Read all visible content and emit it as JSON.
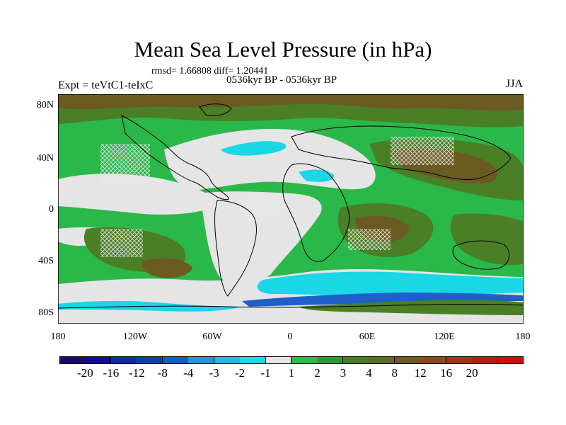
{
  "title": "Mean Sea Level Pressure (in hPa)",
  "stats": "rmsd= 1.66808 diff= 1.20441",
  "period": "0536kyr BP - 0536kyr BP",
  "experiment": "Expt = teVtC1-teIxC",
  "season": "JJA",
  "lat_labels": [
    "80N",
    "40N",
    "0",
    "40S",
    "80S"
  ],
  "lon_labels": [
    "180",
    "120W",
    "60W",
    "0",
    "60E",
    "120E",
    "180"
  ],
  "colors": {
    "map_light": "#e5e5e5",
    "map_green": "#2bb84a",
    "map_olive": "#4a7f26",
    "map_brown": "#6b5b22",
    "map_cyan": "#1ad6e6",
    "map_blue": "#1e5fc8"
  },
  "legend": {
    "colors": [
      "#1a0a6b",
      "#120a9a",
      "#0d2aa8",
      "#0c3fb2",
      "#1060c8",
      "#1a9ad8",
      "#19c0e3",
      "#1adbe9",
      "#e6e6e6",
      "#22c24a",
      "#2e9a36",
      "#4b7f26",
      "#5e6b22",
      "#6b5a22",
      "#8a4a1c",
      "#a83414",
      "#c01a0c",
      "#d80a0a"
    ],
    "labels": [
      "-20",
      "-16",
      "-12",
      "-8",
      "-4",
      "-3",
      "-2",
      "-1",
      "1",
      "2",
      "3",
      "4",
      "8",
      "12",
      "16",
      "20"
    ]
  }
}
